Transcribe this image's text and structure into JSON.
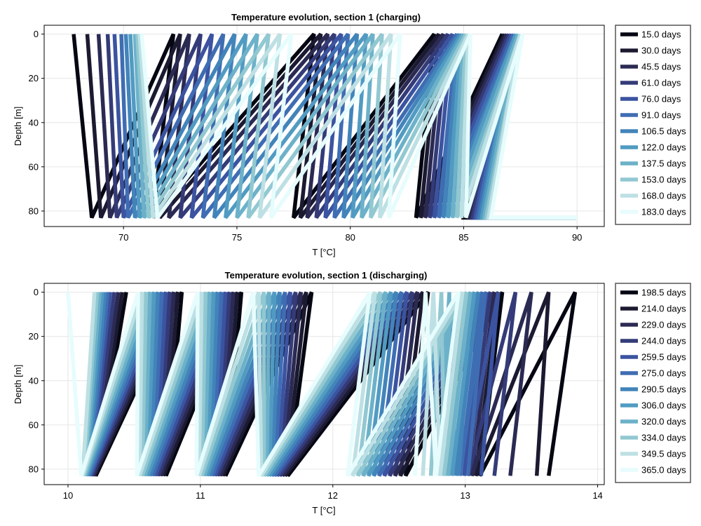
{
  "chart_data": [
    {
      "type": "line",
      "title": "Temperature evolution, section 1 (charging)",
      "xlabel": "T [°C]",
      "ylabel": "Depth [m]",
      "xlim": [
        66.5,
        91.2
      ],
      "ylim": [
        87,
        -4
      ],
      "y_reversed": true,
      "xticks": [
        70,
        75,
        80,
        85,
        90
      ],
      "yticks": [
        0,
        20,
        40,
        60,
        80
      ],
      "grid": true,
      "legend_position": "right",
      "depth_range": [
        0,
        83
      ],
      "series": [
        {
          "name": "15.0 days",
          "color": "#050713",
          "top_x": [
            67.8,
            72.2,
            78.4,
            83.7,
            86.7
          ],
          "bottom_x": [
            68.6,
            71.3,
            77.5,
            82.9,
            85.0,
            88.2,
            89.9
          ]
        },
        {
          "name": "30.0 days",
          "color": "#1b1a31",
          "top_x": [
            68.4,
            72.5,
            78.7,
            83.9,
            86.8
          ],
          "bottom_x": [
            69.0,
            71.6,
            77.8,
            83.1,
            85.2,
            88.3,
            89.9
          ]
        },
        {
          "name": "45.5 days",
          "color": "#2b2a53",
          "top_x": [
            68.9,
            72.9,
            79.0,
            84.1,
            86.9
          ],
          "bottom_x": [
            69.4,
            72.0,
            78.1,
            83.3,
            85.3,
            88.3,
            89.95
          ]
        },
        {
          "name": "61.0 days",
          "color": "#343b78",
          "top_x": [
            69.3,
            73.4,
            79.3,
            84.3,
            87.0
          ],
          "bottom_x": [
            69.7,
            72.5,
            78.5,
            83.5,
            85.4,
            88.4,
            89.95
          ]
        },
        {
          "name": "76.0 days",
          "color": "#3b53a0",
          "top_x": [
            69.6,
            73.9,
            79.6,
            84.5,
            87.1
          ],
          "bottom_x": [
            70.0,
            73.0,
            78.9,
            83.7,
            85.5,
            88.4,
            89.95
          ]
        },
        {
          "name": "91.0 days",
          "color": "#3f6db3",
          "top_x": [
            69.9,
            74.4,
            79.9,
            84.7,
            87.2
          ],
          "bottom_x": [
            70.2,
            73.5,
            79.3,
            83.9,
            85.6,
            88.5,
            89.96
          ]
        },
        {
          "name": "106.5 days",
          "color": "#4284ba",
          "top_x": [
            70.1,
            74.9,
            80.3,
            84.8,
            87.3
          ],
          "bottom_x": [
            70.5,
            74.0,
            79.7,
            84.1,
            85.7,
            88.5,
            89.97
          ]
        },
        {
          "name": "122.0 days",
          "color": "#519bc2",
          "top_x": [
            70.3,
            75.4,
            80.7,
            84.9,
            87.3
          ],
          "bottom_x": [
            70.7,
            74.5,
            80.1,
            84.3,
            85.8,
            88.6,
            89.97
          ]
        },
        {
          "name": "137.5 days",
          "color": "#6cb1c9",
          "top_x": [
            70.5,
            75.9,
            81.0,
            85.0,
            87.4
          ],
          "bottom_x": [
            70.9,
            75.0,
            80.5,
            84.5,
            85.9,
            88.6,
            89.98
          ]
        },
        {
          "name": "153.0 days",
          "color": "#91c8d1",
          "top_x": [
            70.6,
            76.4,
            81.4,
            85.1,
            87.5
          ],
          "bottom_x": [
            71.1,
            75.5,
            80.9,
            84.7,
            86.0,
            88.7,
            89.98
          ]
        },
        {
          "name": "168.0 days",
          "color": "#bde0e4",
          "top_x": [
            70.7,
            76.9,
            81.8,
            85.2,
            87.5
          ],
          "bottom_x": [
            71.3,
            76.0,
            81.3,
            84.9,
            86.1,
            88.7,
            89.99
          ]
        },
        {
          "name": "183.0 days",
          "color": "#e6fcfd",
          "top_x": [
            70.8,
            77.4,
            82.2,
            85.3,
            87.6
          ],
          "bottom_x": [
            71.5,
            76.5,
            81.7,
            85.1,
            86.2,
            88.8,
            90.0
          ]
        }
      ]
    },
    {
      "type": "line",
      "title": "Temperature evolution, section 1 (discharging)",
      "xlabel": "T [°C]",
      "ylabel": "Depth [m]",
      "xlim": [
        9.82,
        14.05
      ],
      "ylim": [
        87,
        -4
      ],
      "y_reversed": true,
      "xticks": [
        10,
        11,
        12,
        13,
        14
      ],
      "yticks": [
        0,
        20,
        40,
        60,
        80
      ],
      "grid": true,
      "legend_position": "right",
      "depth_range": [
        0,
        83
      ],
      "series": [
        {
          "name": "198.5 days",
          "color": "#050713",
          "top_x": [
            10.44,
            10.86,
            11.31,
            11.84,
            12.72,
            13.28,
            13.83
          ],
          "bottom_x": [
            10.21,
            10.74,
            11.19,
            11.66,
            12.55,
            13.11,
            13.63
          ]
        },
        {
          "name": "214.0 days",
          "color": "#1b1a31",
          "top_x": [
            10.41,
            10.83,
            11.28,
            11.8,
            12.68,
            13.25,
            13.63
          ],
          "bottom_x": [
            10.2,
            10.72,
            11.17,
            11.64,
            12.51,
            13.08,
            13.54
          ]
        },
        {
          "name": "229.0 days",
          "color": "#2b2a53",
          "top_x": [
            10.38,
            10.8,
            11.25,
            11.76,
            12.64,
            13.22,
            13.5
          ],
          "bottom_x": [
            10.19,
            10.7,
            11.15,
            11.62,
            12.47,
            13.05,
            13.34
          ]
        },
        {
          "name": "244.0 days",
          "color": "#343b78",
          "top_x": [
            10.35,
            10.77,
            11.22,
            11.72,
            12.6,
            13.19,
            13.38
          ],
          "bottom_x": [
            10.18,
            10.68,
            11.13,
            11.6,
            12.43,
            13.02,
            13.22
          ]
        },
        {
          "name": "259.5 days",
          "color": "#3b53a0",
          "top_x": [
            10.32,
            10.74,
            11.19,
            11.68,
            12.56,
            13.16,
            13.25
          ],
          "bottom_x": [
            10.17,
            10.66,
            11.11,
            11.58,
            12.39,
            12.99,
            13.12
          ]
        },
        {
          "name": "275.0 days",
          "color": "#3f6db3",
          "top_x": [
            10.3,
            10.71,
            11.16,
            11.64,
            12.52,
            13.13,
            13.15
          ],
          "bottom_x": [
            10.16,
            10.64,
            11.09,
            11.56,
            12.35,
            12.96,
            13.02
          ]
        },
        {
          "name": "290.5 days",
          "color": "#4284ba",
          "top_x": [
            10.28,
            10.68,
            11.13,
            11.6,
            12.48,
            13.1,
            13.05
          ],
          "bottom_x": [
            10.15,
            10.62,
            11.07,
            11.54,
            12.31,
            12.93,
            12.95
          ]
        },
        {
          "name": "306.0 days",
          "color": "#519bc2",
          "top_x": [
            10.26,
            10.65,
            11.1,
            11.56,
            12.44,
            13.07,
            12.95
          ],
          "bottom_x": [
            10.14,
            10.6,
            11.05,
            11.52,
            12.27,
            12.9,
            12.86
          ]
        },
        {
          "name": "320.0 days",
          "color": "#6cb1c9",
          "top_x": [
            10.24,
            10.62,
            11.07,
            11.52,
            12.4,
            13.04,
            12.88
          ],
          "bottom_x": [
            10.13,
            10.58,
            11.03,
            11.5,
            12.23,
            12.87,
            12.8
          ]
        },
        {
          "name": "334.0 days",
          "color": "#91c8d1",
          "top_x": [
            10.22,
            10.59,
            11.04,
            11.48,
            12.36,
            13.01,
            12.82
          ],
          "bottom_x": [
            10.12,
            10.56,
            11.01,
            11.48,
            12.19,
            12.84,
            12.74
          ]
        },
        {
          "name": "349.5 days",
          "color": "#bde0e4",
          "top_x": [
            10.2,
            10.56,
            11.01,
            11.44,
            12.32,
            12.98,
            12.76
          ],
          "bottom_x": [
            10.11,
            10.54,
            10.99,
            11.46,
            12.15,
            12.81,
            12.68
          ]
        },
        {
          "name": "365.0 days",
          "color": "#e6fcfd",
          "top_x": [
            10.0,
            10.53,
            10.98,
            11.4,
            12.28,
            12.95,
            12.7
          ],
          "bottom_x": [
            10.1,
            10.52,
            10.97,
            11.44,
            12.11,
            12.78,
            12.62
          ]
        }
      ]
    }
  ]
}
